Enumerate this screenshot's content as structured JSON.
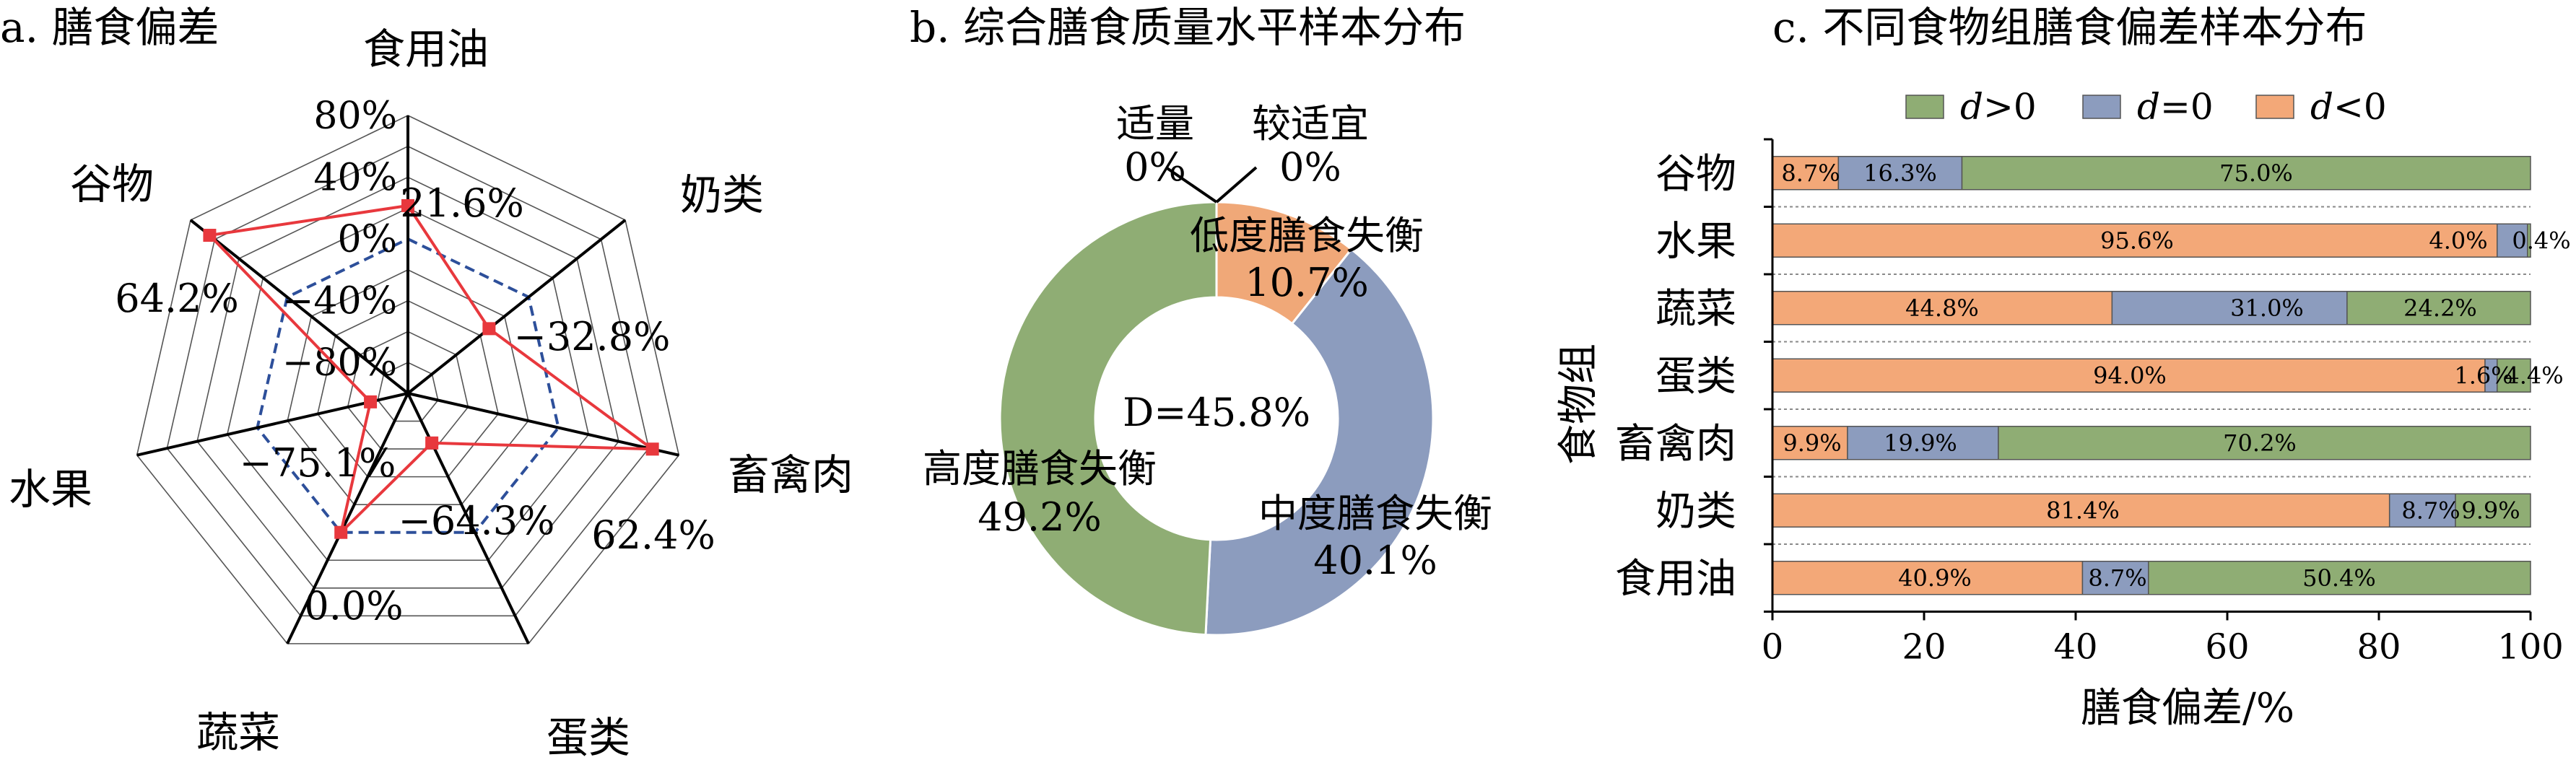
{
  "chart_data": [
    {
      "type": "radar",
      "title": "a. 膳食偏差",
      "axes": [
        "食用油",
        "奶类",
        "畜禽肉",
        "蛋类",
        "蔬菜",
        "水果",
        "谷物"
      ],
      "values": [
        21.6,
        -32.8,
        62.4,
        -64.3,
        0.0,
        -75.1,
        64.2
      ],
      "value_labels": [
        "21.6%",
        "−32.8%",
        "62.4%",
        "−64.3%",
        "0.0%",
        "−75.1%",
        "64.2%"
      ],
      "radial_ticks": [
        "80%",
        "40%",
        "0%",
        "−40%",
        "−80%"
      ],
      "range": [
        -100,
        80
      ],
      "colors": {
        "series": "#e8383d",
        "zero_ring": "#2d4f9a"
      }
    },
    {
      "type": "pie",
      "title": "b. 综合膳食质量水平样本分布",
      "center_text": "D=45.8%",
      "slices": [
        {
          "name": "适量",
          "value": 0.0,
          "label": "0%",
          "color": "#e8a274"
        },
        {
          "name": "较适宜",
          "value": 0.0,
          "label": "0%",
          "color": "#e8a274"
        },
        {
          "name": "低度膳食失衡",
          "value": 10.7,
          "label": "10.7%",
          "color": "#f0a878"
        },
        {
          "name": "中度膳食失衡",
          "value": 40.1,
          "label": "40.1%",
          "color": "#8c9cbe"
        },
        {
          "name": "高度膳食失衡",
          "value": 49.2,
          "label": "49.2%",
          "color": "#8fad74"
        }
      ]
    },
    {
      "type": "bar",
      "orientation": "horizontal",
      "stacked": true,
      "title": "c. 不同食物组膳食偏差样本分布",
      "xlabel": "膳食偏差/%",
      "ylabel": "食物组",
      "xlim": [
        0,
        100
      ],
      "xticks": [
        "0",
        "20",
        "40",
        "60",
        "80",
        "100"
      ],
      "categories": [
        "谷物",
        "水果",
        "蔬菜",
        "蛋类",
        "畜禽肉",
        "奶类",
        "食用油"
      ],
      "series": [
        {
          "name": "d<0",
          "color": "#f3a878",
          "values": [
            8.7,
            95.6,
            44.8,
            94.0,
            9.9,
            81.4,
            40.9
          ],
          "labels": [
            "8.7%",
            "95.6%",
            "44.8%",
            "94.0%",
            "9.9%",
            "81.4%",
            "40.9%"
          ]
        },
        {
          "name": "d=0",
          "color": "#8c9cbe",
          "values": [
            16.3,
            4.0,
            31.0,
            1.6,
            19.9,
            8.7,
            8.7
          ],
          "labels": [
            "16.3%",
            "4.0%",
            "31.0%",
            "1.6%",
            "19.9%",
            "8.7%",
            "8.7%"
          ]
        },
        {
          "name": "d>0",
          "color": "#8fad74",
          "values": [
            75.0,
            0.4,
            24.2,
            4.4,
            70.2,
            9.9,
            50.4
          ],
          "labels": [
            "75.0%",
            "0.4%",
            "24.2%",
            "4.4%",
            "70.2%",
            "9.9%",
            "50.4%"
          ]
        }
      ],
      "legend": [
        {
          "prefix": "d",
          "op": ">0",
          "color": "#8fad74"
        },
        {
          "prefix": "d",
          "op": "=0",
          "color": "#8c9cbe"
        },
        {
          "prefix": "d",
          "op": "<0",
          "color": "#f3a878"
        }
      ],
      "legend_position": "top"
    }
  ]
}
